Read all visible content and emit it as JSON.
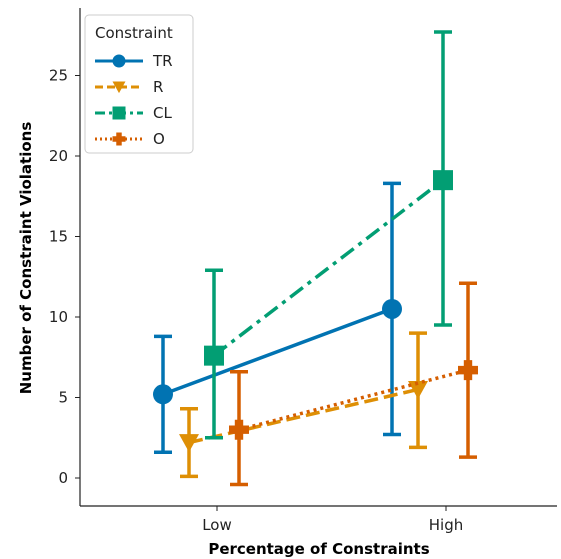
{
  "chart_data": {
    "type": "line",
    "xlabel": "Percentage of Constraints",
    "ylabel": "Number of Constraint Violations",
    "categories": [
      "Low",
      "High"
    ],
    "ylim": [
      -1.8,
      28.2
    ],
    "yticks": [
      0,
      5,
      10,
      15,
      20,
      25
    ],
    "grid": false,
    "legend": {
      "title": "Constraint",
      "placement": "top-left"
    },
    "series": [
      {
        "name": "TR",
        "values": [
          5.2,
          10.5
        ],
        "err_low": [
          1.6,
          2.7
        ],
        "err_high": [
          8.8,
          18.3
        ],
        "color": "#0173b2",
        "marker": "circle",
        "dash": "solid"
      },
      {
        "name": "R",
        "values": [
          2.2,
          5.5
        ],
        "err_low": [
          0.1,
          1.9
        ],
        "err_high": [
          4.3,
          9.0
        ],
        "color": "#de8f05",
        "marker": "triangle-down",
        "dash": "dashed"
      },
      {
        "name": "CL",
        "values": [
          7.6,
          18.5
        ],
        "err_low": [
          2.5,
          9.5
        ],
        "err_high": [
          12.9,
          27.7
        ],
        "color": "#029e73",
        "marker": "square",
        "dash": "dashdot"
      },
      {
        "name": "O",
        "values": [
          3.0,
          6.7
        ],
        "err_low": [
          -0.4,
          1.3
        ],
        "err_high": [
          6.6,
          12.1
        ],
        "color": "#d55e00",
        "marker": "plus",
        "dash": "dotted"
      }
    ]
  }
}
